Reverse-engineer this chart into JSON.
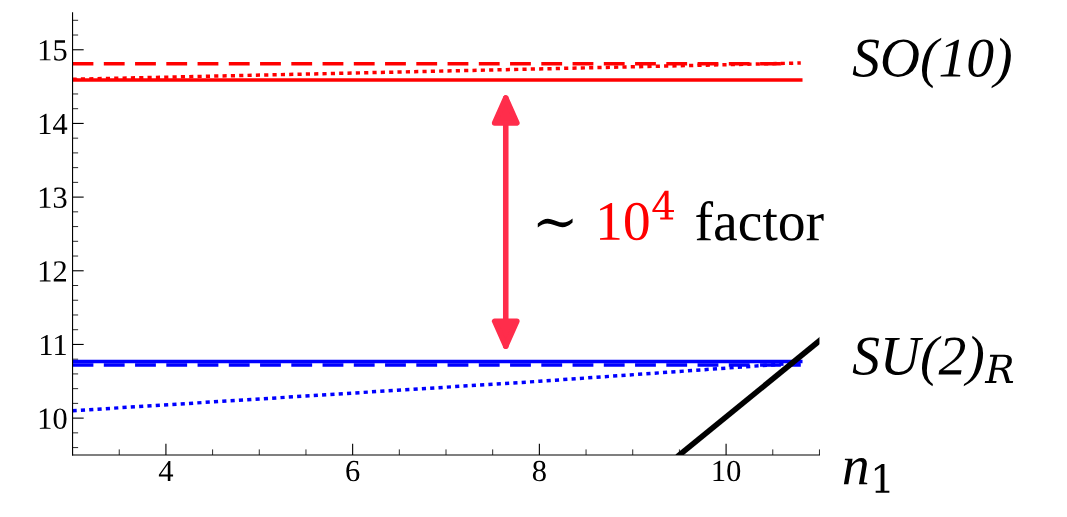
{
  "chart_data": {
    "type": "line",
    "xlabel": "n$_{1}$",
    "xlim": [
      3,
      11
    ],
    "xticks": [
      4,
      6,
      8,
      10
    ],
    "ylim": [
      9.5,
      15.5
    ],
    "yticks": [
      10,
      11,
      12,
      13,
      14,
      15
    ],
    "grid": false,
    "legend": false,
    "series": [
      {
        "color": "#ff0000",
        "line_style": "solid",
        "x": [
          3,
          10.8
        ],
        "values": [
          14.59,
          14.59
        ]
      },
      {
        "color": "#ff0000",
        "line_style": "dashed",
        "x": [
          3,
          10.7
        ],
        "values": [
          14.81,
          14.81
        ]
      },
      {
        "name": "SO(10)",
        "color": "#ff0000",
        "line_style": "dotted",
        "x": [
          3,
          8,
          10.8
        ],
        "values": [
          14.6,
          14.74,
          14.82
        ]
      },
      {
        "name": "SU(2)$_{R}$",
        "color": "#0000ff",
        "line_style": "solid",
        "x": [
          3,
          10.8
        ],
        "values": [
          10.77,
          10.77
        ]
      },
      {
        "color": "#0000ff",
        "line_style": "dashed",
        "x": [
          3,
          10.8
        ],
        "values": [
          10.72,
          10.72
        ]
      },
      {
        "color": "#0000ff",
        "line_style": "dotted",
        "x": [
          3,
          8,
          10.8
        ],
        "values": [
          10.1,
          10.5,
          10.75
        ]
      },
      {
        "color": "#000000",
        "line_style": "solid",
        "x": [
          9.5,
          11
        ],
        "values": [
          9.5,
          11.05
        ]
      }
    ],
    "annotations": [
      "∼",
      "10$^{4}$",
      "factor"
    ]
  }
}
